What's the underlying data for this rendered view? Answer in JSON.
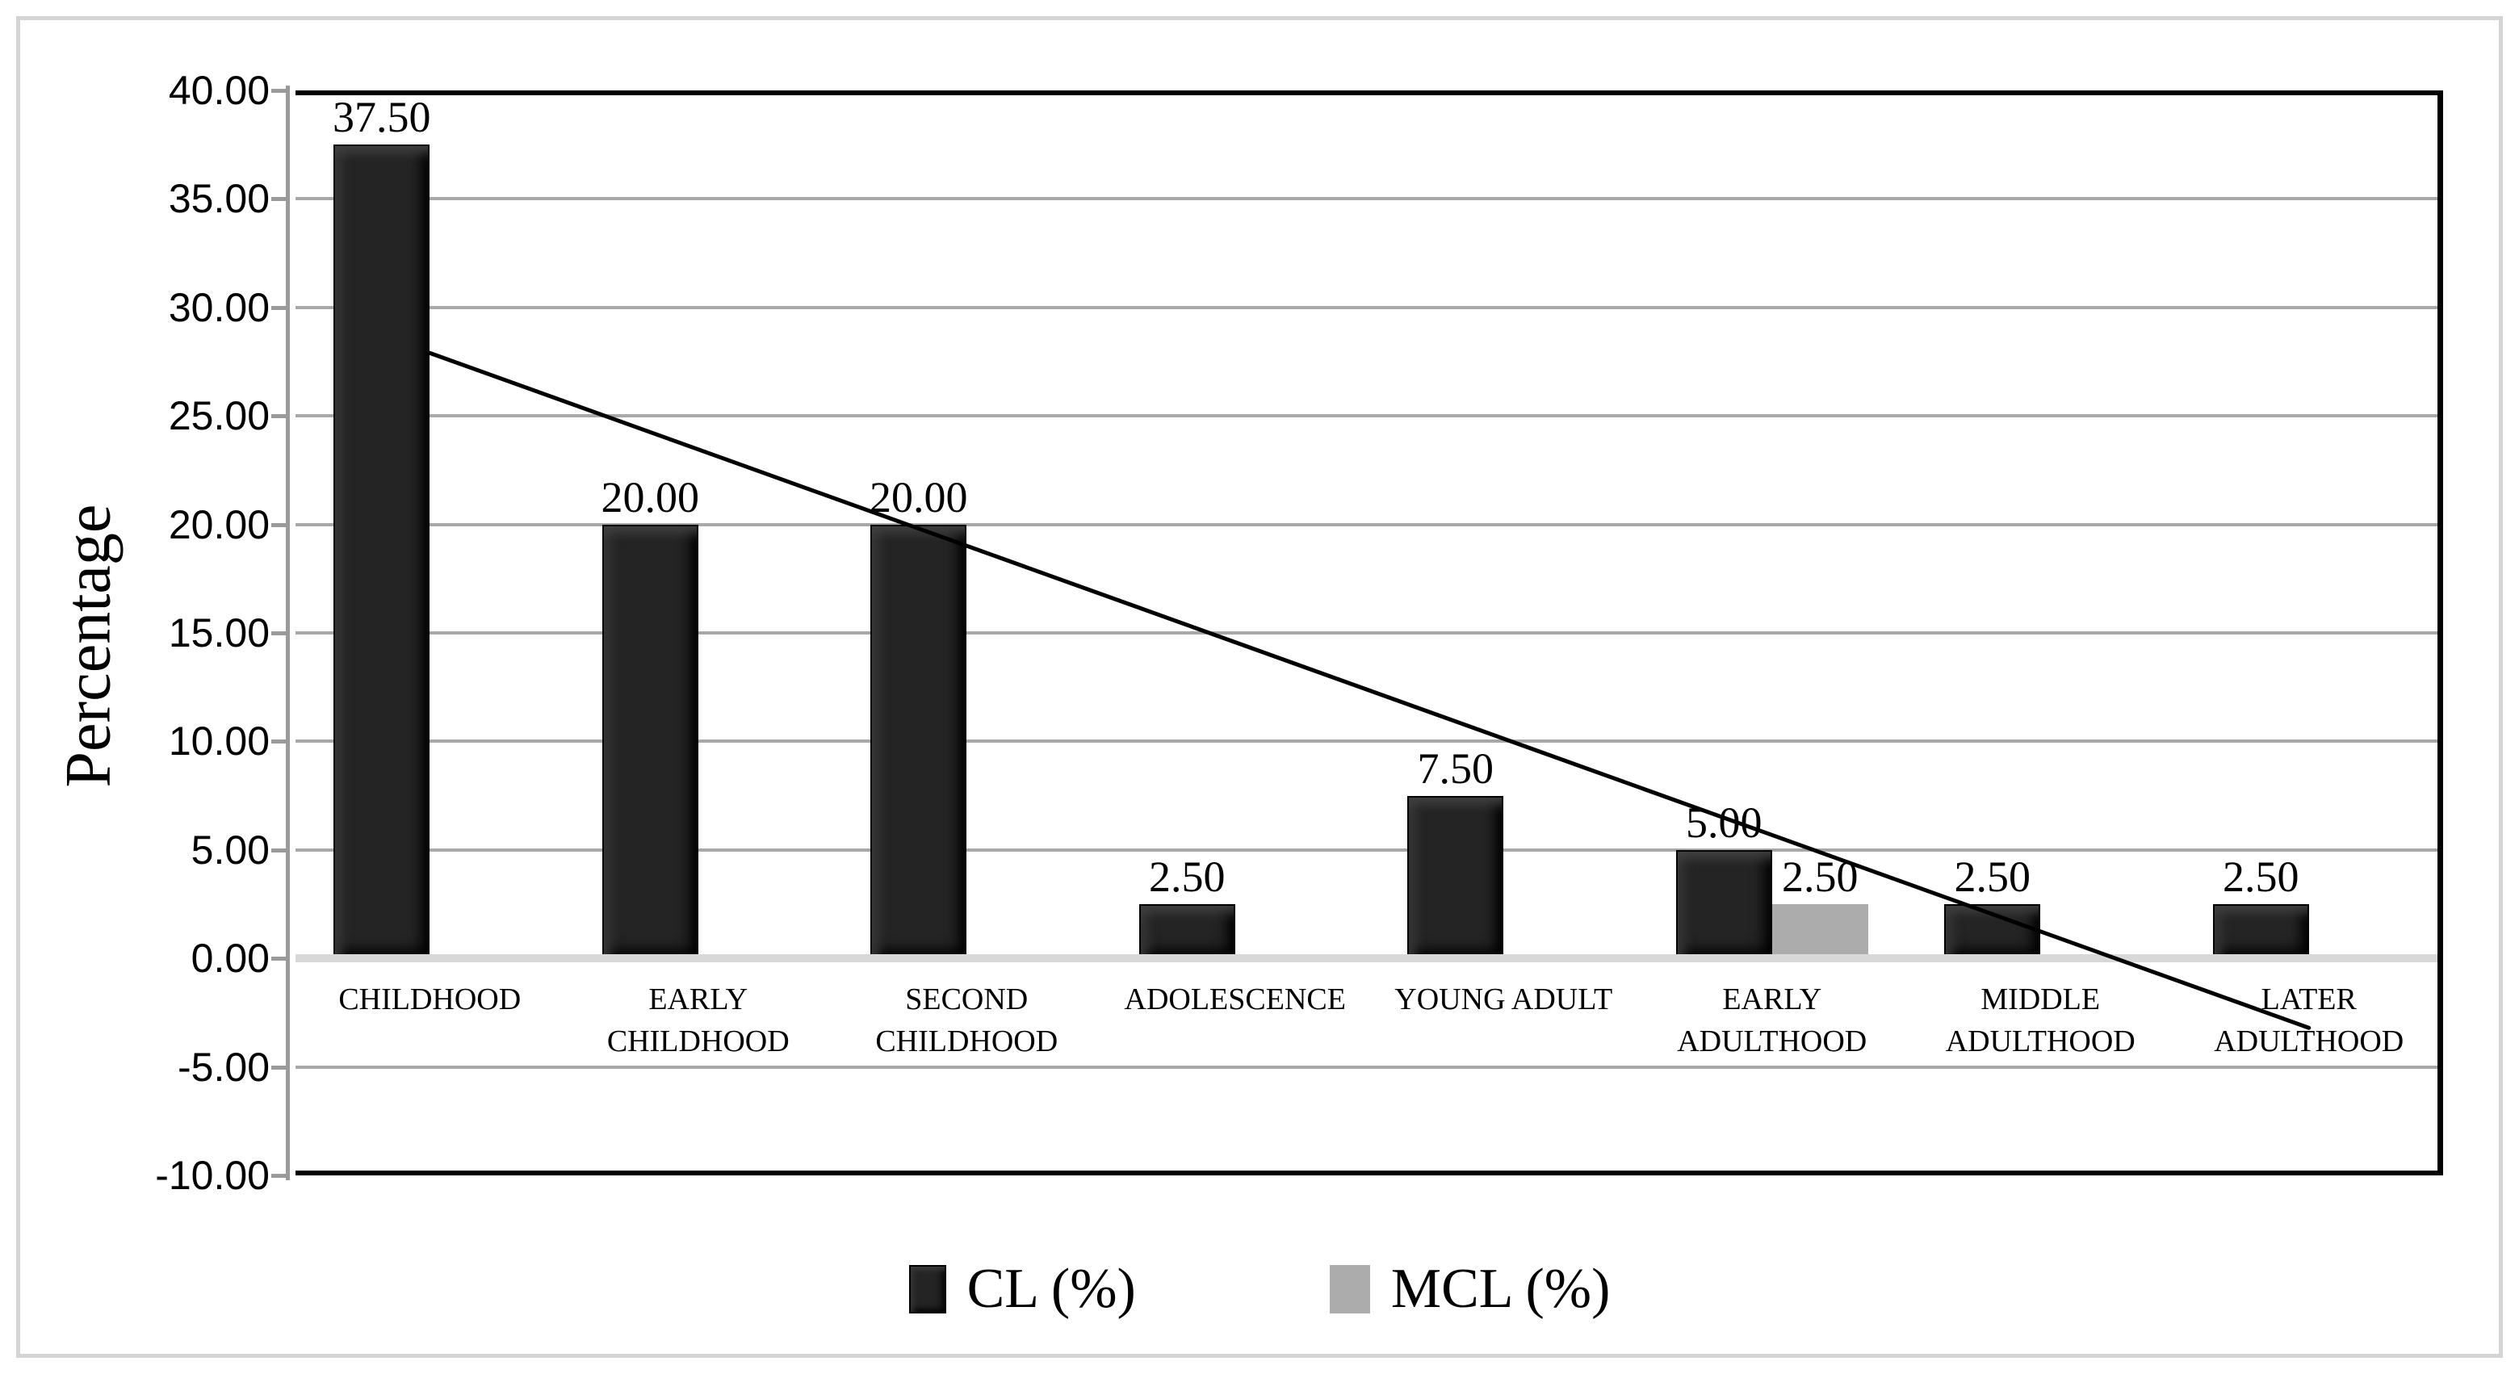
{
  "window": {
    "background": "#ffffff",
    "figure_border_color": "#d4d4d4"
  },
  "chart_data": {
    "type": "bar",
    "title": "",
    "xlabel": "",
    "ylabel": "Percentage",
    "categories": [
      "CHILDHOOD",
      "EARLY CHILDHOOD",
      "SECOND CHILDHOOD",
      "ADOLESCENCE",
      "YOUNG ADULT",
      "EARLY ADULTHOOD",
      "MIDDLE ADULTHOOD",
      "LATER ADULTHOOD"
    ],
    "series": [
      {
        "name": "CL (%)",
        "swatch": "cl",
        "values": [
          37.5,
          20,
          20,
          2.5,
          7.5,
          5,
          2.5,
          2.5
        ],
        "labels": [
          "37.50",
          "20.00",
          "20.00",
          "2.50",
          "7.50",
          "5.00",
          "2.50",
          "2.50"
        ]
      },
      {
        "name": "MCL (%)",
        "swatch": "mcl",
        "values": [
          null,
          null,
          null,
          null,
          null,
          2.5,
          null,
          null
        ],
        "labels": [
          null,
          null,
          null,
          null,
          null,
          "2.50",
          null,
          null
        ]
      }
    ],
    "trendline": {
      "series": "CL (%)",
      "start_category_index": 0,
      "end_category_index": 7,
      "start_value": 27.9,
      "end_value": -3.2
    },
    "y_axis": {
      "min": -10,
      "max": 40,
      "step": 5,
      "tick_labels": [
        "40.00",
        "35.00",
        "30.00",
        "25.00",
        "20.00",
        "15.00",
        "10.00",
        "5.00",
        "0.00",
        "-5.00",
        "-10.00"
      ]
    },
    "ylim": [
      -10,
      40
    ],
    "grid": true,
    "legend_position": "bottom",
    "legend": {
      "items": [
        {
          "label": "CL (%)",
          "swatch": "cl"
        },
        {
          "label": "MCL (%)",
          "swatch": "mcl"
        }
      ]
    },
    "colors": {
      "cl_bar": "#242424",
      "mcl_bar": "#acacac",
      "gridline": "#a8a8a8",
      "axis": "#9a9a9a",
      "zero_band": "#d8d8d8",
      "plot_border": "#000000",
      "trendline": "#000000"
    }
  }
}
